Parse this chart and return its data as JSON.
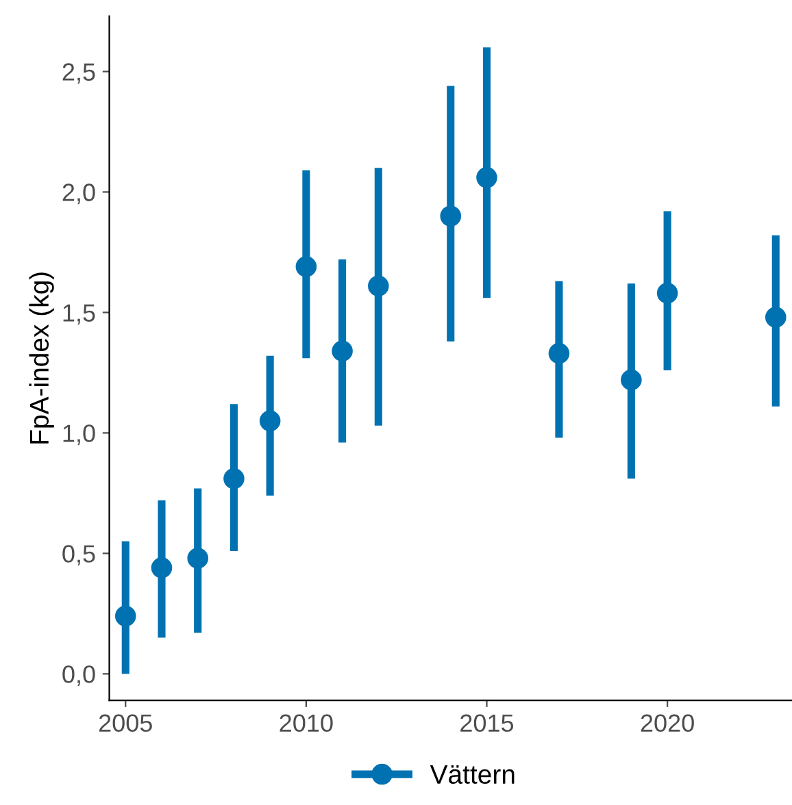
{
  "chart_data": {
    "type": "scatter",
    "ylabel": "FpA-index (kg)",
    "x": [
      2005,
      2006,
      2007,
      2008,
      2009,
      2010,
      2011,
      2012,
      2014,
      2015,
      2017,
      2019,
      2020,
      2023
    ],
    "series": [
      {
        "name": "Vättern",
        "color": "#0072b2",
        "values": [
          0.24,
          0.44,
          0.48,
          0.81,
          1.05,
          1.69,
          1.34,
          1.61,
          1.9,
          2.06,
          1.33,
          1.22,
          1.58,
          1.48
        ],
        "errors": [
          [
            0.0,
            0.55
          ],
          [
            0.15,
            0.72
          ],
          [
            0.17,
            0.77
          ],
          [
            0.51,
            1.12
          ],
          [
            0.74,
            1.32
          ],
          [
            1.31,
            2.09
          ],
          [
            0.96,
            1.72
          ],
          [
            1.03,
            2.1
          ],
          [
            1.38,
            2.44
          ],
          [
            1.56,
            2.6
          ],
          [
            0.98,
            1.63
          ],
          [
            0.81,
            1.62
          ],
          [
            1.26,
            1.92
          ],
          [
            1.11,
            1.82
          ]
        ]
      }
    ],
    "xlim": [
      2004.55,
      2023.45
    ],
    "xticks": [
      2005,
      2010,
      2015,
      2020
    ],
    "ylim": [
      -0.11,
      2.73
    ],
    "yticks": [
      {
        "value": 0,
        "label": "0,0"
      },
      {
        "value": 0.5,
        "label": "0,5"
      },
      {
        "value": 1.0,
        "label": "1,0"
      },
      {
        "value": 1.5,
        "label": "1,5"
      },
      {
        "value": 2.0,
        "label": "2,0"
      },
      {
        "value": 2.5,
        "label": "2,5"
      }
    ],
    "marker": "circle",
    "grid": false,
    "legend": "bottom"
  }
}
